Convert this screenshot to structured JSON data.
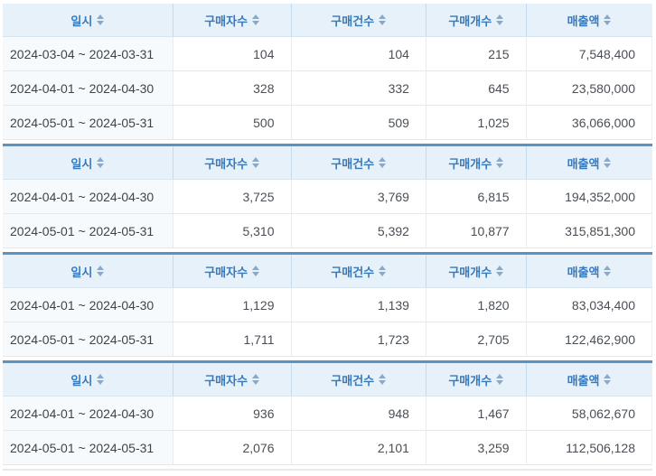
{
  "columns": [
    {
      "id": "date",
      "label": "일시"
    },
    {
      "id": "buyers",
      "label": "구매자수"
    },
    {
      "id": "orders",
      "label": "구매건수"
    },
    {
      "id": "items",
      "label": "구매개수"
    },
    {
      "id": "sales",
      "label": "매출액"
    }
  ],
  "tables": [
    {
      "rows": [
        {
          "date": "2024-03-04 ~ 2024-03-31",
          "buyers": "104",
          "orders": "104",
          "items": "215",
          "sales": "7,548,400"
        },
        {
          "date": "2024-04-01 ~ 2024-04-30",
          "buyers": "328",
          "orders": "332",
          "items": "645",
          "sales": "23,580,000"
        },
        {
          "date": "2024-05-01 ~ 2024-05-31",
          "buyers": "500",
          "orders": "509",
          "items": "1,025",
          "sales": "36,066,000"
        }
      ]
    },
    {
      "rows": [
        {
          "date": "2024-04-01 ~ 2024-04-30",
          "buyers": "3,725",
          "orders": "3,769",
          "items": "6,815",
          "sales": "194,352,000"
        },
        {
          "date": "2024-05-01 ~ 2024-05-31",
          "buyers": "5,310",
          "orders": "5,392",
          "items": "10,877",
          "sales": "315,851,300"
        }
      ]
    },
    {
      "rows": [
        {
          "date": "2024-04-01 ~ 2024-04-30",
          "buyers": "1,129",
          "orders": "1,139",
          "items": "1,820",
          "sales": "83,034,400"
        },
        {
          "date": "2024-05-01 ~ 2024-05-31",
          "buyers": "1,711",
          "orders": "1,723",
          "items": "2,705",
          "sales": "122,462,900"
        }
      ]
    },
    {
      "rows": [
        {
          "date": "2024-04-01 ~ 2024-04-30",
          "buyers": "936",
          "orders": "948",
          "items": "1,467",
          "sales": "58,062,670"
        },
        {
          "date": "2024-05-01 ~ 2024-05-31",
          "buyers": "2,076",
          "orders": "2,101",
          "items": "3,259",
          "sales": "112,506,128"
        }
      ]
    }
  ],
  "icons": {
    "sort": "sort-updown-icon"
  },
  "colors": {
    "header_bg": "#e7f1f9",
    "header_text": "#3779bd",
    "table_top_border": "#5b92c5",
    "sort_icon": "#8aa9c9",
    "row_date_bg": "#f7fafc",
    "cell_text": "#4a4f55",
    "cell_border": "#e7e7e7"
  }
}
